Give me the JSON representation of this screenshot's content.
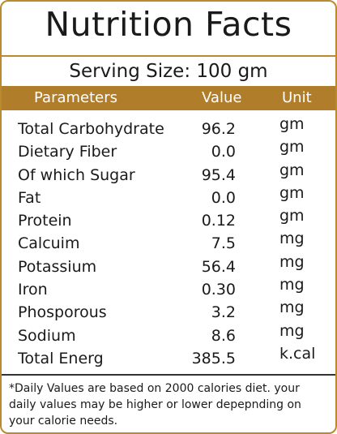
{
  "title": "Nutrition Facts",
  "serving_size": "Serving Size: 100 gm",
  "columns": {
    "parameter": "Parameters",
    "value": "Value",
    "unit": "Unit"
  },
  "rows": [
    {
      "name": "Total Carbohydrate",
      "value": "96.2",
      "unit": "gm"
    },
    {
      "name": "Dietary Fiber",
      "value": "0.0",
      "unit": "gm"
    },
    {
      "name": "Of which Sugar",
      "value": "95.4",
      "unit": "gm"
    },
    {
      "name": "Fat",
      "value": "0.0",
      "unit": "gm"
    },
    {
      "name": "Protein",
      "value": "0.12",
      "unit": "gm"
    },
    {
      "name": "Calcuim",
      "value": "7.5",
      "unit": "mg"
    },
    {
      "name": "Potassium",
      "value": "56.4",
      "unit": "mg"
    },
    {
      "name": "Iron",
      "value": "0.30",
      "unit": "mg"
    },
    {
      "name": "Phosporous",
      "value": "3.2",
      "unit": "mg"
    },
    {
      "name": "Sodium",
      "value": "8.6",
      "unit": "mg"
    },
    {
      "name": "Total Energ",
      "value": "385.5",
      "unit": "k.cal"
    }
  ],
  "footnote": "*Daily Values are based on 2000 calories diet. your daily values may be higher or lower depepnding on your calorie needs.",
  "colors": {
    "accent": "#b07e2b",
    "border": "#b98a2e",
    "text": "#1a1a1a"
  }
}
